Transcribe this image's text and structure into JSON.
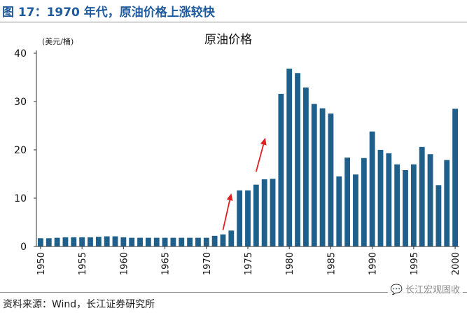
{
  "figure": {
    "title": "图 17：1970 年代，原油价格上涨较快",
    "source": "资料来源：Wind，长江证券研究所",
    "watermark": "长江宏观固收",
    "watermark_icon": "wechat-icon"
  },
  "colors": {
    "title": "#1f5a9c",
    "bar": "#1f5f8b",
    "arrow": "#e02020"
  },
  "chart_data": {
    "type": "bar",
    "title": "原油价格",
    "ylabel": "(美元/桶)",
    "xlabel": "",
    "ylim": [
      0,
      40
    ],
    "yticks": [
      0,
      10,
      20,
      30,
      40
    ],
    "xticks": [
      1950,
      1955,
      1960,
      1965,
      1970,
      1975,
      1980,
      1985,
      1990,
      1995,
      2000
    ],
    "grid": false,
    "categories": [
      1950,
      1951,
      1952,
      1953,
      1954,
      1955,
      1956,
      1957,
      1958,
      1959,
      1960,
      1961,
      1962,
      1963,
      1964,
      1965,
      1966,
      1967,
      1968,
      1969,
      1970,
      1971,
      1972,
      1973,
      1974,
      1975,
      1976,
      1977,
      1978,
      1979,
      1980,
      1981,
      1982,
      1983,
      1984,
      1985,
      1986,
      1987,
      1988,
      1989,
      1990,
      1991,
      1992,
      1993,
      1994,
      1995,
      1996,
      1997,
      1998,
      1999,
      2000
    ],
    "values": [
      1.7,
      1.7,
      1.8,
      1.9,
      1.9,
      1.9,
      1.9,
      2.0,
      2.1,
      2.1,
      1.9,
      1.8,
      1.8,
      1.8,
      1.8,
      1.8,
      1.8,
      1.8,
      1.8,
      1.8,
      1.8,
      2.2,
      2.5,
      3.3,
      11.6,
      11.6,
      12.8,
      13.9,
      14.0,
      31.6,
      36.8,
      35.9,
      32.9,
      29.5,
      28.6,
      27.5,
      14.5,
      18.4,
      14.9,
      18.3,
      23.8,
      20.0,
      19.3,
      17.0,
      15.8,
      17.0,
      20.6,
      19.1,
      12.7,
      17.9,
      28.5
    ],
    "annotations": [
      {
        "type": "arrow",
        "from": [
          1972.0,
          3.4
        ],
        "to": [
          1973.0,
          11.0
        ]
      },
      {
        "type": "arrow",
        "from": [
          1976.0,
          15.5
        ],
        "to": [
          1977.1,
          22.5
        ]
      }
    ]
  }
}
